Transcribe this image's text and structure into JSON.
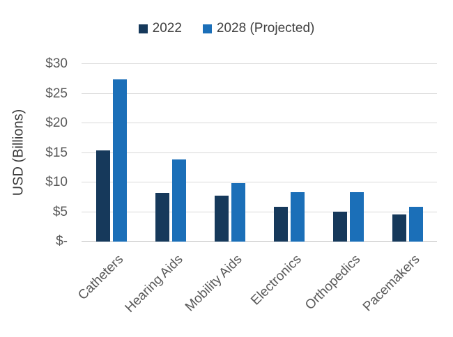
{
  "chart_data": {
    "type": "bar",
    "title": "",
    "categories": [
      "Catheters",
      "Hearing Aids",
      "Mobility Aids",
      "Electronics",
      "Orthopedics",
      "Pacemakers"
    ],
    "series": [
      {
        "name": "2022",
        "color": "#16395b",
        "values": [
          15.4,
          8.2,
          7.8,
          5.9,
          5.1,
          4.6
        ]
      },
      {
        "name": "2028 (Projected)",
        "color": "#1b6fb8",
        "values": [
          27.4,
          13.9,
          9.9,
          8.4,
          8.4,
          5.9
        ]
      }
    ],
    "xlabel": "",
    "ylabel": "USD (Billions)",
    "ylim": [
      0,
      30
    ],
    "ytick_step": 5,
    "ytick_labels": [
      "$-",
      "$5",
      "$10",
      "$15",
      "$20",
      "$25",
      "$30"
    ],
    "grid": true,
    "legend_position": "top"
  },
  "colors": {
    "background": "#ffffff",
    "gridline": "#d9d9d9",
    "axis_line": "#c6c6c6",
    "tick_text": "#595959",
    "legend_text": "#404040",
    "series_2022": "#16395b",
    "series_2028": "#1b6fb8"
  }
}
